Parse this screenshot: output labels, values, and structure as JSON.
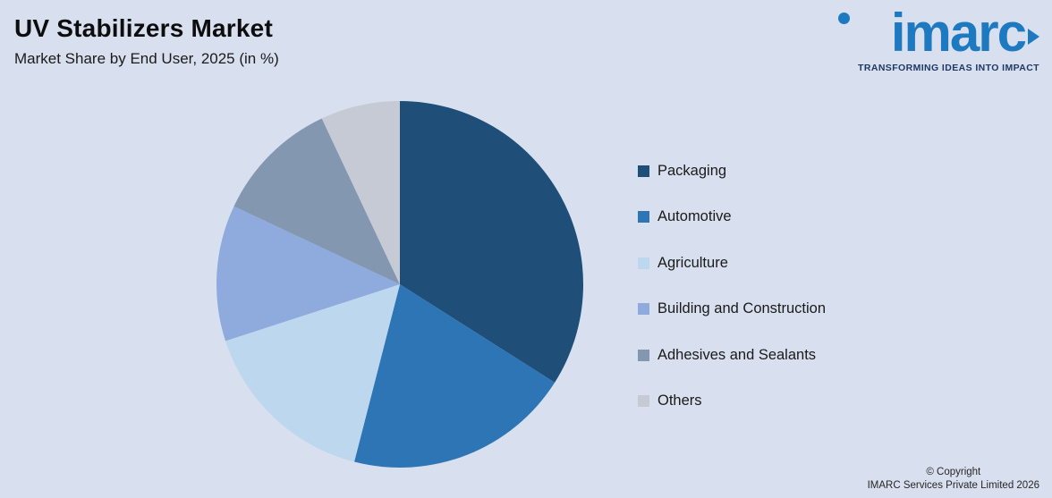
{
  "header": {
    "title": "UV Stabilizers Market",
    "subtitle": "Market Share by End User, 2025 (in %)"
  },
  "logo": {
    "text": "imarc",
    "tagline": "TRANSFORMING IDEAS INTO IMPACT",
    "brand_blue": "#1e7ac0",
    "tagline_navy": "#1f3864"
  },
  "footer": {
    "copyright_line1": "© Copyright",
    "copyright_line2": "IMARC Services Private Limited 2026"
  },
  "colors": {
    "background": "#d8e0ef",
    "text": "#1a1a1a"
  },
  "chart_data": {
    "type": "pie",
    "title": "UV Stabilizers Market",
    "subtitle": "Market Share by End User, 2025 (in %)",
    "categories": [
      "Packaging",
      "Automotive",
      "Agriculture",
      "Building and Construction",
      "Adhesives and Sealants",
      "Others"
    ],
    "values": [
      34,
      20,
      16,
      12,
      11,
      7
    ],
    "colors": [
      "#1f4e79",
      "#2e75b6",
      "#bdd7ee",
      "#8faadc",
      "#8497b0",
      "#c5cad4"
    ],
    "legend_position": "right",
    "start_angle_deg": 0,
    "direction": "clockwise",
    "data_labels": "none",
    "units": "%"
  }
}
